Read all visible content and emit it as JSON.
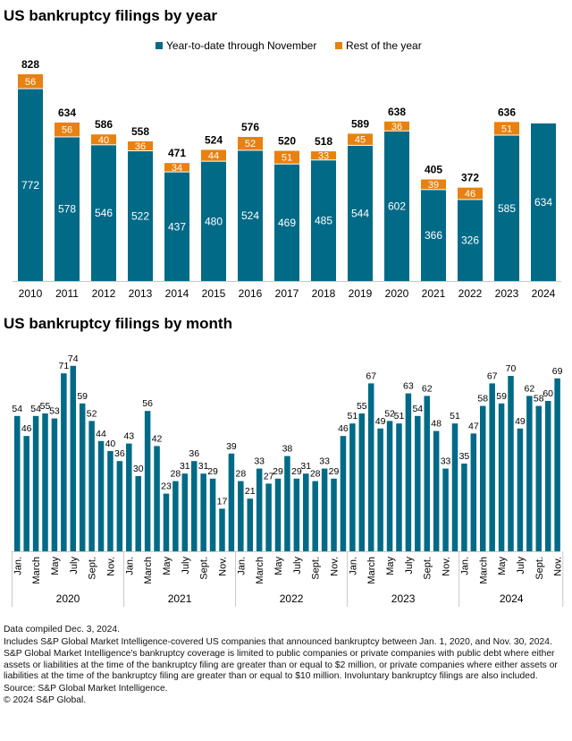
{
  "colors": {
    "ytd": "#006a87",
    "rest": "#e8810f",
    "axis": "#c8c8c8"
  },
  "chart_data": [
    {
      "type": "bar",
      "stacked": true,
      "title": "US bankruptcy filings by year",
      "categories": [
        "2010",
        "2011",
        "2012",
        "2013",
        "2014",
        "2015",
        "2016",
        "2017",
        "2018",
        "2019",
        "2020",
        "2021",
        "2022",
        "2023",
        "2024"
      ],
      "series": [
        {
          "name": "Year-to-date through November",
          "values": [
            772,
            578,
            546,
            522,
            437,
            480,
            524,
            469,
            485,
            544,
            602,
            366,
            326,
            585,
            634
          ]
        },
        {
          "name": "Rest of the year",
          "values": [
            56,
            56,
            40,
            36,
            34,
            44,
            52,
            51,
            33,
            45,
            36,
            39,
            46,
            51,
            null
          ]
        }
      ],
      "totals": [
        828,
        634,
        586,
        558,
        471,
        524,
        576,
        520,
        518,
        589,
        638,
        405,
        372,
        636,
        null
      ],
      "legend": "top",
      "grid": false,
      "ylim": [
        0,
        828
      ]
    },
    {
      "type": "bar",
      "title": "US bankruptcy filings by month",
      "years": [
        "2020",
        "2021",
        "2022",
        "2023",
        "2024"
      ],
      "month_tick_labels": [
        "Jan.",
        "March",
        "May",
        "July",
        "Sept.",
        "Nov."
      ],
      "values": [
        [
          54,
          46,
          54,
          55,
          53,
          71,
          74,
          59,
          52,
          44,
          40,
          36
        ],
        [
          43,
          30,
          56,
          42,
          23,
          28,
          31,
          36,
          31,
          29,
          17,
          39
        ],
        [
          28,
          21,
          33,
          27,
          29,
          38,
          29,
          31,
          28,
          33,
          29,
          46
        ],
        [
          51,
          55,
          67,
          49,
          52,
          51,
          63,
          54,
          62,
          48,
          33,
          51
        ],
        [
          35,
          47,
          58,
          67,
          59,
          70,
          49,
          62,
          58,
          60,
          69
        ]
      ],
      "grid": false,
      "ylim": [
        0,
        74
      ]
    }
  ],
  "notes": [
    "Data compiled Dec. 3, 2024.",
    "Includes S&P Global Market Intelligence-covered US companies that announced bankruptcy between Jan. 1, 2020, and Nov. 30, 2024.",
    "S&P Global Market Intelligence's bankruptcy coverage is limited to public companies or private companies with public debt where either assets or liabilities at the time of the bankruptcy filing are greater than or equal to $2 million, or private companies where either assets or liabilities at the time of the bankruptcy filing are greater than or equal to $10 million. Involuntary bankruptcy filings are also included.",
    "Source: S&P Global Market Intelligence.",
    "© 2024 S&P Global."
  ]
}
